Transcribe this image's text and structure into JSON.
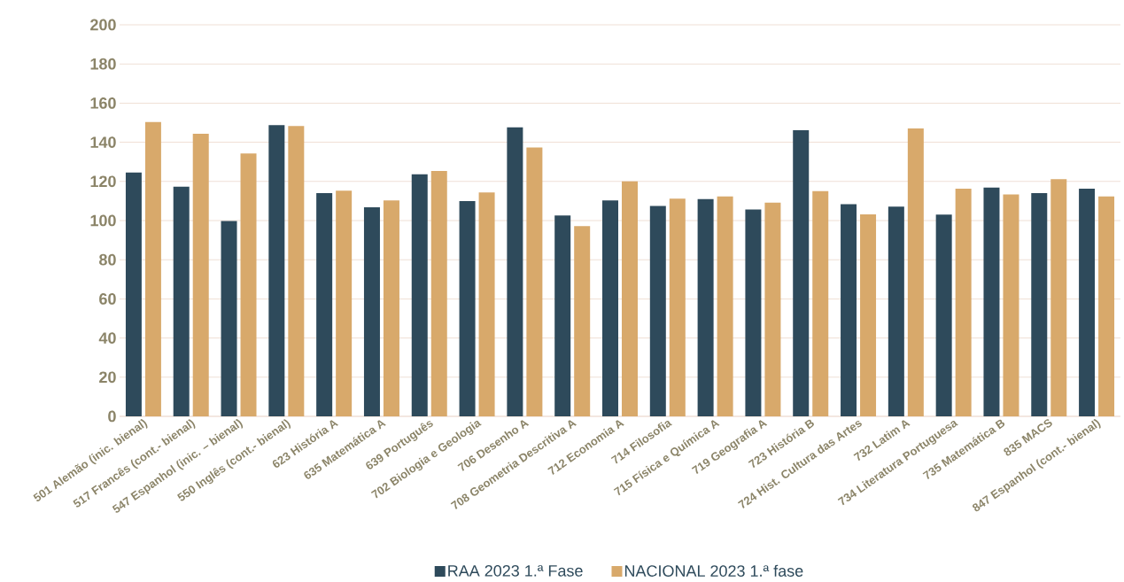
{
  "chart_data": {
    "type": "bar",
    "categories": [
      "501 Alemão (inic. bienal)",
      "517 Francês (cont.- bienal)",
      "547 Espanhol (inic. – bienal)",
      "550 Inglês (cont.- bienal)",
      "623 História A",
      "635 Matemática A",
      "639 Português",
      "702 Biologia e Geologia",
      "706 Desenho A",
      "708 Geometria Descritiva A",
      "712 Economia A",
      "714 Filosofia",
      "715 Física e Química A",
      "719 Geografia A",
      "723 História B",
      "724 Hist. Cultura das Artes",
      "732 Latim A",
      "734 Literatura Portuguesa",
      "735 Matemática B",
      "835 MACS",
      "847 Espanhol (cont.- bienal)"
    ],
    "series": [
      {
        "name": "RAA 2023 1.ª Fase",
        "color": "#2e4a5b",
        "values": [
          124.5,
          117.3,
          99.8,
          148.7,
          114,
          106.8,
          123.6,
          110,
          147.6,
          102.6,
          110.3,
          107.5,
          111,
          105.6,
          146.2,
          108.4,
          107.1,
          103,
          116.8,
          114,
          116.3
        ]
      },
      {
        "name": "NACIONAL 2023 1.ª fase",
        "color": "#d8a96b",
        "values": [
          150.4,
          144.3,
          134.3,
          148.3,
          115.3,
          110.3,
          125.3,
          114.4,
          137.3,
          97.2,
          120,
          111.2,
          112.3,
          109.2,
          115.1,
          103.2,
          147.1,
          116.3,
          113.3,
          121.1,
          112.3
        ]
      }
    ],
    "ylim": [
      0,
      200
    ],
    "yticks": [
      0,
      20,
      40,
      60,
      80,
      100,
      120,
      140,
      160,
      180,
      200
    ],
    "grid": "y",
    "legend": "bottom"
  }
}
